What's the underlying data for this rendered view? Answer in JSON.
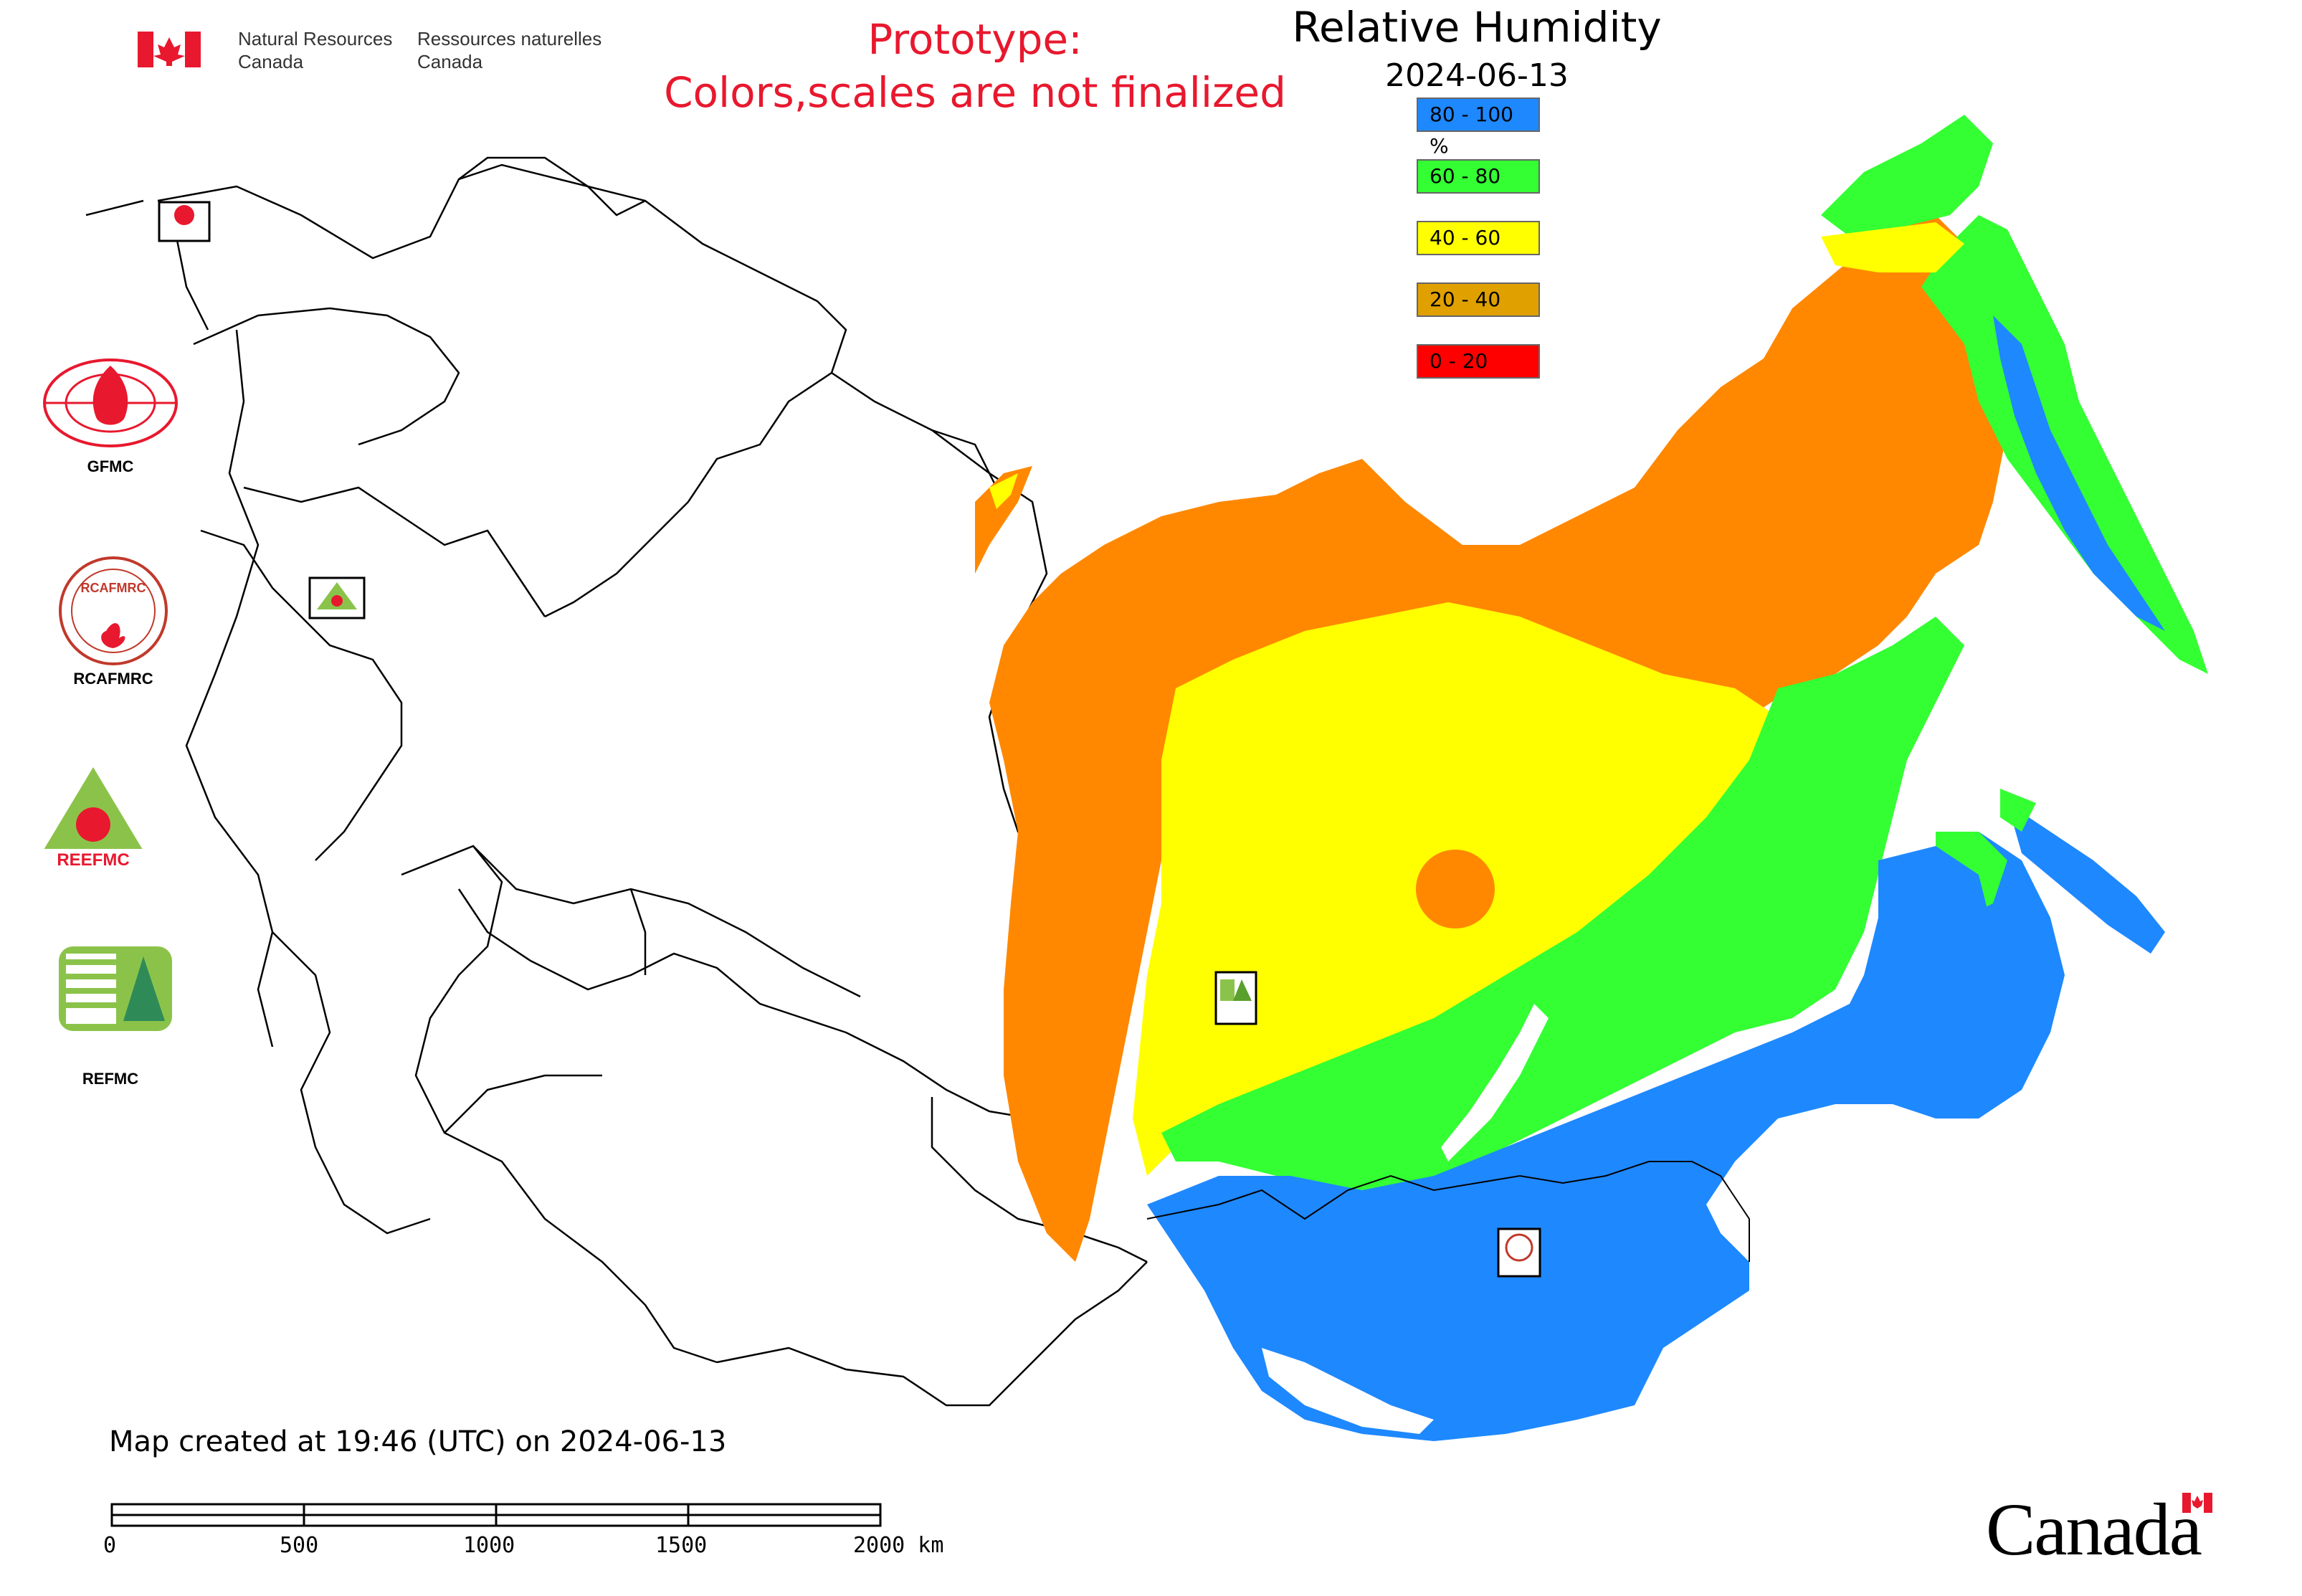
{
  "header": {
    "dept_en_line1": "Natural Resources",
    "dept_en_line2": "Canada",
    "dept_fr_line1": "Ressources naturelles",
    "dept_fr_line2": "Canada",
    "prototype_line1": "Prototype:",
    "prototype_line2": "Colors,scales are not finalized"
  },
  "map": {
    "title": "Relative Humidity",
    "date": "2024-06-13",
    "legend": [
      {
        "label": "80 - 100 %",
        "color": "#1e88ff"
      },
      {
        "label": "60 - 80",
        "color": "#33ff33"
      },
      {
        "label": "40 - 60",
        "color": "#ffff00"
      },
      {
        "label": "20 - 40",
        "color": "#e0a000"
      },
      {
        "label": "0 - 20",
        "color": "#ff0000"
      }
    ],
    "created": "Map created at 19:46 (UTC) on 2024-06-13",
    "scale_ticks": [
      "0",
      "500",
      "1000",
      "1500",
      "2000 km"
    ]
  },
  "logos": {
    "gfmc": "GFMC",
    "rcafmrc": "RCAFMRC",
    "reefmc": "REEFMC",
    "refmc": "REFMC",
    "rcafmrc_badge_text": "RCAFMRC",
    "reefmc_badge_text": "REEFMC"
  },
  "footer": {
    "wordmark": "Canada"
  },
  "colors": {
    "blue": "#1e88ff",
    "green": "#33ff33",
    "yellow": "#ffff00",
    "orange": "#ff8800",
    "prototype_red": "#e8182e"
  }
}
